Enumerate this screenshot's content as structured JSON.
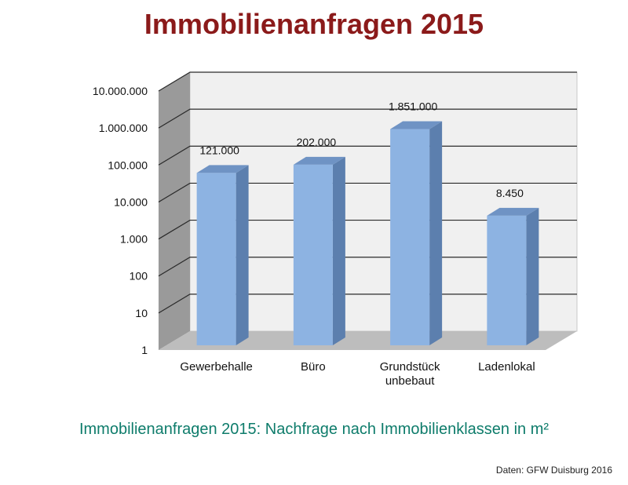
{
  "header": {
    "title": "Immobilienanfragen 2015"
  },
  "footer": {
    "subtitle": "Immobilienanfragen 2015: Nachfrage nach Immobilienklassen in m²",
    "source": "Daten: GFW Duisburg 2016"
  },
  "colors": {
    "title": "#8b1a1a",
    "subtitle": "#0e7c6b",
    "bar_front": "#8db3e2",
    "bar_side": "#5c7fae",
    "bar_top": "#6f93c4",
    "back_wall": "#f0f0f0",
    "side_wall": "#9a9a9a",
    "floor": "#bdbdbd"
  },
  "chart_data": {
    "type": "bar",
    "title": "Immobilienanfragen 2015",
    "categories": [
      "Gewerbehalle",
      "Büro",
      "Grundstück\nunbebaut",
      "Ladenlokal"
    ],
    "values": [
      121000,
      202000,
      1851000,
      8450
    ],
    "value_labels": [
      "121.000",
      "202.000",
      "1.851.000",
      "8.450"
    ],
    "y_scale": "log",
    "ylim": [
      1,
      10000000
    ],
    "y_ticks": [
      1,
      10,
      100,
      1000,
      10000,
      100000,
      1000000,
      10000000
    ],
    "y_tick_labels": [
      "1",
      "10",
      "100",
      "1.000",
      "10.000",
      "100.000",
      "1.000.000",
      "10.000.000"
    ],
    "grid": true,
    "style": "3d"
  }
}
